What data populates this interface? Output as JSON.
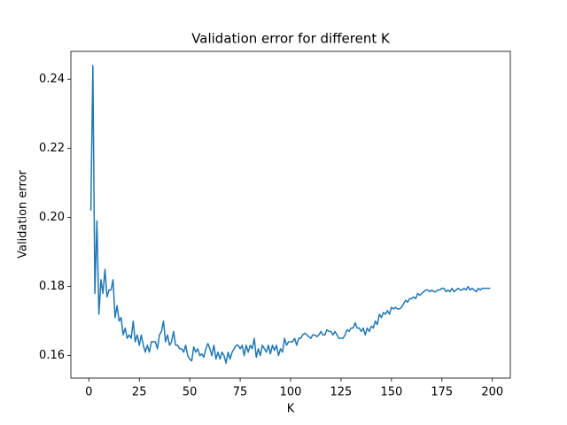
{
  "chart_data": {
    "type": "line",
    "title": "Validation error for different K",
    "xlabel": "K",
    "ylabel": "Validation error",
    "xlim": [
      -8.9,
      208.9
    ],
    "ylim": [
      0.1535,
      0.2481
    ],
    "xticks": [
      0,
      25,
      50,
      75,
      100,
      125,
      150,
      175,
      200
    ],
    "yticks": [
      0.16,
      0.18,
      {
        "value": 0.2,
        "label": "0.20"
      },
      0.22,
      0.24
    ],
    "series": [
      {
        "color": "#1f77b4",
        "x": [
          1,
          2,
          3,
          4,
          5,
          6,
          7,
          8,
          9,
          10,
          11,
          12,
          13,
          14,
          15,
          16,
          17,
          18,
          19,
          20,
          21,
          22,
          23,
          24,
          25,
          26,
          27,
          28,
          29,
          30,
          31,
          32,
          33,
          34,
          35,
          36,
          37,
          38,
          39,
          40,
          41,
          42,
          43,
          44,
          45,
          46,
          47,
          48,
          49,
          50,
          51,
          52,
          53,
          54,
          55,
          56,
          57,
          58,
          59,
          60,
          61,
          62,
          63,
          64,
          65,
          66,
          67,
          68,
          69,
          70,
          71,
          72,
          73,
          74,
          75,
          76,
          77,
          78,
          79,
          80,
          81,
          82,
          83,
          84,
          85,
          86,
          87,
          88,
          89,
          90,
          91,
          92,
          93,
          94,
          95,
          96,
          97,
          98,
          99,
          100,
          101,
          102,
          103,
          104,
          105,
          106,
          107,
          108,
          109,
          110,
          111,
          112,
          113,
          114,
          115,
          116,
          117,
          118,
          119,
          120,
          121,
          122,
          123,
          124,
          125,
          126,
          127,
          128,
          129,
          130,
          131,
          132,
          133,
          134,
          135,
          136,
          137,
          138,
          139,
          140,
          141,
          142,
          143,
          144,
          145,
          146,
          147,
          148,
          149,
          150,
          151,
          152,
          153,
          154,
          155,
          156,
          157,
          158,
          159,
          160,
          161,
          162,
          163,
          164,
          165,
          166,
          167,
          168,
          169,
          170,
          171,
          172,
          173,
          174,
          175,
          176,
          177,
          178,
          179,
          180,
          181,
          182,
          183,
          184,
          185,
          186,
          187,
          188,
          189,
          190,
          191,
          192,
          193,
          194,
          195,
          196,
          197,
          198,
          199
        ],
        "values": [
          0.202,
          0.244,
          0.178,
          0.199,
          0.172,
          0.182,
          0.178,
          0.185,
          0.177,
          0.179,
          0.179,
          0.182,
          0.171,
          0.1745,
          0.17,
          0.171,
          0.166,
          0.168,
          0.165,
          0.166,
          0.165,
          0.17,
          0.164,
          0.166,
          0.163,
          0.166,
          0.163,
          0.161,
          0.163,
          0.161,
          0.164,
          0.164,
          0.164,
          0.162,
          0.166,
          0.167,
          0.17,
          0.164,
          0.166,
          0.163,
          0.164,
          0.167,
          0.163,
          0.163,
          0.162,
          0.162,
          0.161,
          0.163,
          0.16,
          0.159,
          0.1585,
          0.1625,
          0.161,
          0.162,
          0.16,
          0.1605,
          0.1595,
          0.162,
          0.1635,
          0.162,
          0.16,
          0.163,
          0.159,
          0.161,
          0.159,
          0.161,
          0.16,
          0.1578,
          0.161,
          0.159,
          0.161,
          0.162,
          0.163,
          0.163,
          0.162,
          0.163,
          0.16,
          0.163,
          0.161,
          0.163,
          0.162,
          0.165,
          0.1595,
          0.162,
          0.16,
          0.163,
          0.162,
          0.161,
          0.163,
          0.1605,
          0.163,
          0.1615,
          0.163,
          0.16,
          0.162,
          0.161,
          0.165,
          0.163,
          0.164,
          0.164,
          0.164,
          0.165,
          0.163,
          0.165,
          0.165,
          0.166,
          0.1665,
          0.166,
          0.1655,
          0.165,
          0.166,
          0.166,
          0.1655,
          0.166,
          0.167,
          0.166,
          0.166,
          0.1675,
          0.167,
          0.167,
          0.166,
          0.167,
          0.166,
          0.165,
          0.165,
          0.165,
          0.166,
          0.1675,
          0.167,
          0.168,
          0.168,
          0.1695,
          0.168,
          0.168,
          0.167,
          0.168,
          0.166,
          0.168,
          0.167,
          0.1685,
          0.168,
          0.17,
          0.169,
          0.172,
          0.171,
          0.1725,
          0.172,
          0.173,
          0.172,
          0.174,
          0.1735,
          0.174,
          0.1735,
          0.1735,
          0.174,
          0.175,
          0.176,
          0.1755,
          0.1765,
          0.1765,
          0.177,
          0.1765,
          0.178,
          0.1775,
          0.178,
          0.1785,
          0.179,
          0.179,
          0.1785,
          0.179,
          0.1785,
          0.1785,
          0.179,
          0.179,
          0.1795,
          0.1795,
          0.1785,
          0.179,
          0.1785,
          0.1795,
          0.1785,
          0.179,
          0.1795,
          0.179,
          0.179,
          0.1795,
          0.179,
          0.18,
          0.179,
          0.1795,
          0.179,
          0.1785,
          0.1795,
          0.179,
          0.1795,
          0.1795,
          0.1795,
          0.1795,
          0.1795
        ]
      }
    ]
  }
}
